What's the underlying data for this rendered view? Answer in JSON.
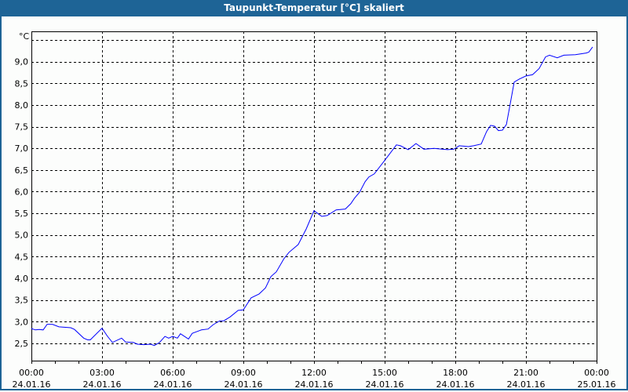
{
  "window": {
    "title": "Taupunkt-Temperatur [°C] skaliert"
  },
  "chart_data": {
    "type": "line",
    "title": "Taupunkt-Temperatur [°C] skaliert",
    "ylabel": "°C",
    "xlabel": "",
    "ylim": [
      2.1,
      9.7
    ],
    "xlim_hours": [
      0,
      24
    ],
    "grid": true,
    "y_gridlines": [
      2.5,
      3.0,
      3.5,
      4.0,
      4.5,
      5.0,
      5.5,
      6.0,
      6.5,
      7.0,
      7.5,
      8.0,
      8.5,
      9.0,
      9.5
    ],
    "y_ticks": [
      {
        "value": 2.5,
        "label": "2,5"
      },
      {
        "value": 3.0,
        "label": "3,0"
      },
      {
        "value": 3.5,
        "label": "3,5"
      },
      {
        "value": 4.0,
        "label": "4,0"
      },
      {
        "value": 4.5,
        "label": "4,5"
      },
      {
        "value": 5.0,
        "label": "5,0"
      },
      {
        "value": 5.5,
        "label": "5,5"
      },
      {
        "value": 6.0,
        "label": "6,0"
      },
      {
        "value": 6.5,
        "label": "6,5"
      },
      {
        "value": 7.0,
        "label": "7,0"
      },
      {
        "value": 7.5,
        "label": "7,5"
      },
      {
        "value": 8.0,
        "label": "8,0"
      },
      {
        "value": 8.5,
        "label": "8,5"
      },
      {
        "value": 9.0,
        "label": "9,0"
      }
    ],
    "x_ticks": [
      {
        "hour": 0,
        "time": "00:00",
        "date": "24.01.16"
      },
      {
        "hour": 3,
        "time": "03:00",
        "date": "24.01.16"
      },
      {
        "hour": 6,
        "time": "06:00",
        "date": "24.01.16"
      },
      {
        "hour": 9,
        "time": "09:00",
        "date": "24.01.16"
      },
      {
        "hour": 12,
        "time": "12:00",
        "date": "24.01.16"
      },
      {
        "hour": 15,
        "time": "15:00",
        "date": "24.01.16"
      },
      {
        "hour": 18,
        "time": "18:00",
        "date": "24.01.16"
      },
      {
        "hour": 21,
        "time": "21:00",
        "date": "24.01.16"
      },
      {
        "hour": 24,
        "time": "00:00",
        "date": "25.01.16"
      }
    ],
    "series": [
      {
        "name": "Taupunkt",
        "color": "#0000ff",
        "x": [
          0,
          0.17,
          0.33,
          0.5,
          0.67,
          0.89,
          1.17,
          1.67,
          1.83,
          2.22,
          2.39,
          2.5,
          3.0,
          3.22,
          3.44,
          3.83,
          4.0,
          4.33,
          4.5,
          4.78,
          5.06,
          5.22,
          5.44,
          5.67,
          5.83,
          6.0,
          6.2,
          6.33,
          6.67,
          6.83,
          7.22,
          7.5,
          7.72,
          8.0,
          8.17,
          8.44,
          8.78,
          9.0,
          9.33,
          9.67,
          9.94,
          10.17,
          10.4,
          10.72,
          10.94,
          11.33,
          11.67,
          12.0,
          12.33,
          12.56,
          12.94,
          13.33,
          13.56,
          13.72,
          13.94,
          14.17,
          14.33,
          14.56,
          15.0,
          15.5,
          15.67,
          16.0,
          16.33,
          16.67,
          17.1,
          17.44,
          17.67,
          17.94,
          18.17,
          18.56,
          18.78,
          19.1,
          19.33,
          19.5,
          19.67,
          19.83,
          20.0,
          20.17,
          20.33,
          20.5,
          20.72,
          21.0,
          21.28,
          21.56,
          21.83,
          22.0,
          22.33,
          22.61,
          23.1,
          23.56,
          23.67,
          23.83
        ],
        "y": [
          2.84,
          2.81,
          2.82,
          2.81,
          2.94,
          2.94,
          2.88,
          2.86,
          2.82,
          2.62,
          2.58,
          2.58,
          2.85,
          2.67,
          2.52,
          2.62,
          2.53,
          2.52,
          2.48,
          2.47,
          2.48,
          2.45,
          2.52,
          2.66,
          2.62,
          2.66,
          2.62,
          2.72,
          2.6,
          2.73,
          2.81,
          2.83,
          2.93,
          3.02,
          3.02,
          3.11,
          3.26,
          3.27,
          3.55,
          3.64,
          3.78,
          4.04,
          4.15,
          4.45,
          4.6,
          4.78,
          5.14,
          5.56,
          5.43,
          5.45,
          5.58,
          5.6,
          5.72,
          5.85,
          5.99,
          6.23,
          6.34,
          6.41,
          6.72,
          7.08,
          7.06,
          6.97,
          7.11,
          6.98,
          7.0,
          6.98,
          6.97,
          6.98,
          7.06,
          7.04,
          7.06,
          7.1,
          7.39,
          7.53,
          7.51,
          7.41,
          7.42,
          7.55,
          8.02,
          8.53,
          8.6,
          8.67,
          8.7,
          8.84,
          9.11,
          9.15,
          9.09,
          9.15,
          9.16,
          9.2,
          9.22,
          9.34
        ]
      }
    ]
  }
}
